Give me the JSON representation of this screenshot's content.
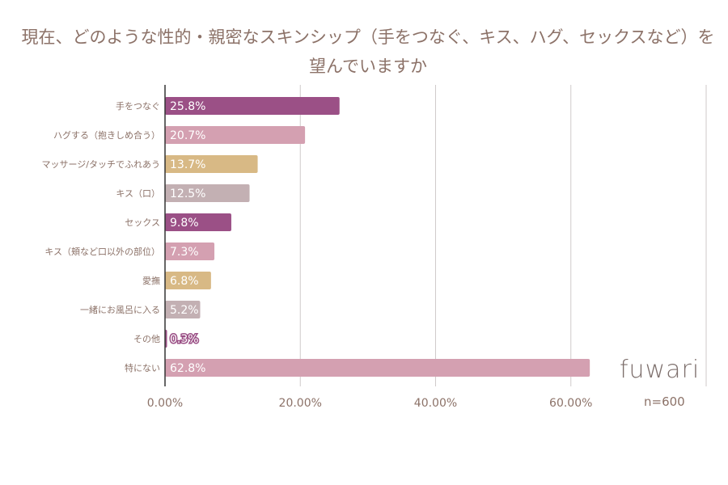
{
  "chart_data": {
    "type": "bar",
    "orientation": "horizontal",
    "title": "現在、どのような性的・親密なスキンシップ（手をつなぐ、キス、ハグ、セックスなど）を望んでいますか",
    "categories": [
      "手をつなぐ",
      "ハグする（抱きしめ合う）",
      "マッサージ/タッチでふれあう",
      "キス（口）",
      "セックス",
      "キス（頬など口以外の部位）",
      "愛撫",
      "一緒にお風呂に入る",
      "その他",
      "特にない"
    ],
    "values": [
      25.8,
      20.7,
      13.7,
      12.5,
      9.8,
      7.3,
      6.8,
      5.2,
      0.3,
      62.8
    ],
    "data_labels": [
      "25.8%",
      "20.7%",
      "13.7%",
      "12.5%",
      "9.8%",
      "7.3%",
      "6.8%",
      "5.2%",
      "0.3%",
      "62.8%"
    ],
    "colors": [
      "#9b5086",
      "#d4a0b1",
      "#d8b985",
      "#c3b0b3",
      "#9b5086",
      "#d4a0b1",
      "#d8b985",
      "#c3b0b3",
      "#9b5086",
      "#d4a0b1"
    ],
    "xlim": [
      0,
      80
    ],
    "xticks": [
      0,
      20,
      40,
      60,
      80
    ],
    "xtick_labels": [
      "0.00%",
      "20.00%",
      "40.00%",
      "60.00%",
      ""
    ],
    "grid": true,
    "xlabel": "",
    "ylabel": ""
  },
  "logo": "fuwari",
  "sample_size": "n=600"
}
